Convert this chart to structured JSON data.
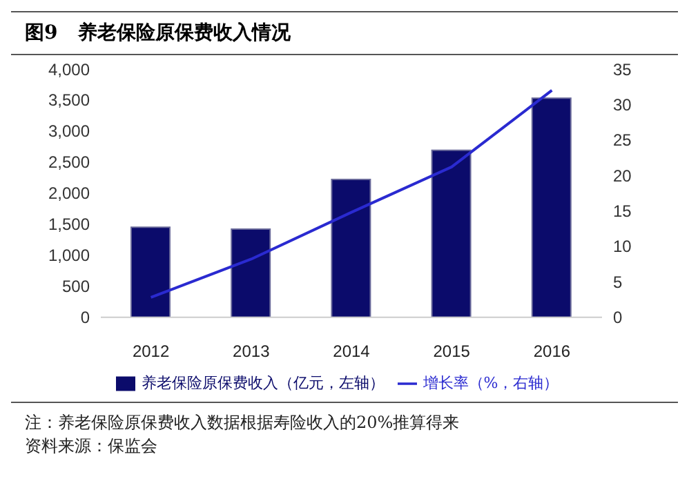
{
  "chart_data": {
    "type": "bar",
    "title": "图9   养老保险原保费收入情况",
    "categories": [
      "2012",
      "2013",
      "2014",
      "2015",
      "2016"
    ],
    "series": [
      {
        "name": "养老保险原保费收入（亿元，左轴）",
        "color": "#0b0b6b",
        "values": [
          1450,
          1420,
          2220,
          2690,
          3530
        ]
      },
      {
        "name": "增长率（%，右轴）",
        "type": "line",
        "axis": "y2",
        "color": "#2a2ad0",
        "values": [
          2.8,
          8.2,
          14.8,
          21.2,
          32
        ]
      }
    ],
    "ylim": [
      0,
      4000
    ],
    "yticks": [
      0,
      {
        "value": 500,
        "label": "500"
      },
      {
        "value": 1000,
        "label": "1,000"
      },
      {
        "value": 1500,
        "label": "1,500"
      },
      {
        "value": 2000,
        "label": "2,000"
      },
      {
        "value": 2500,
        "label": "2,500"
      },
      {
        "value": 3000,
        "label": "3,000"
      },
      {
        "value": 3500,
        "label": "3,500"
      },
      {
        "value": 4000,
        "label": "4,000"
      }
    ],
    "y2lim": [
      0,
      35
    ],
    "y2ticks": [
      0,
      5,
      10,
      15,
      20,
      25,
      30,
      35
    ],
    "grid": false,
    "legend": "bottom",
    "marker": "none",
    "annotations": [
      "注：养老保险原保费收入数据根据寿险收入的20%推算得来",
      "资料来源：保监会"
    ]
  }
}
